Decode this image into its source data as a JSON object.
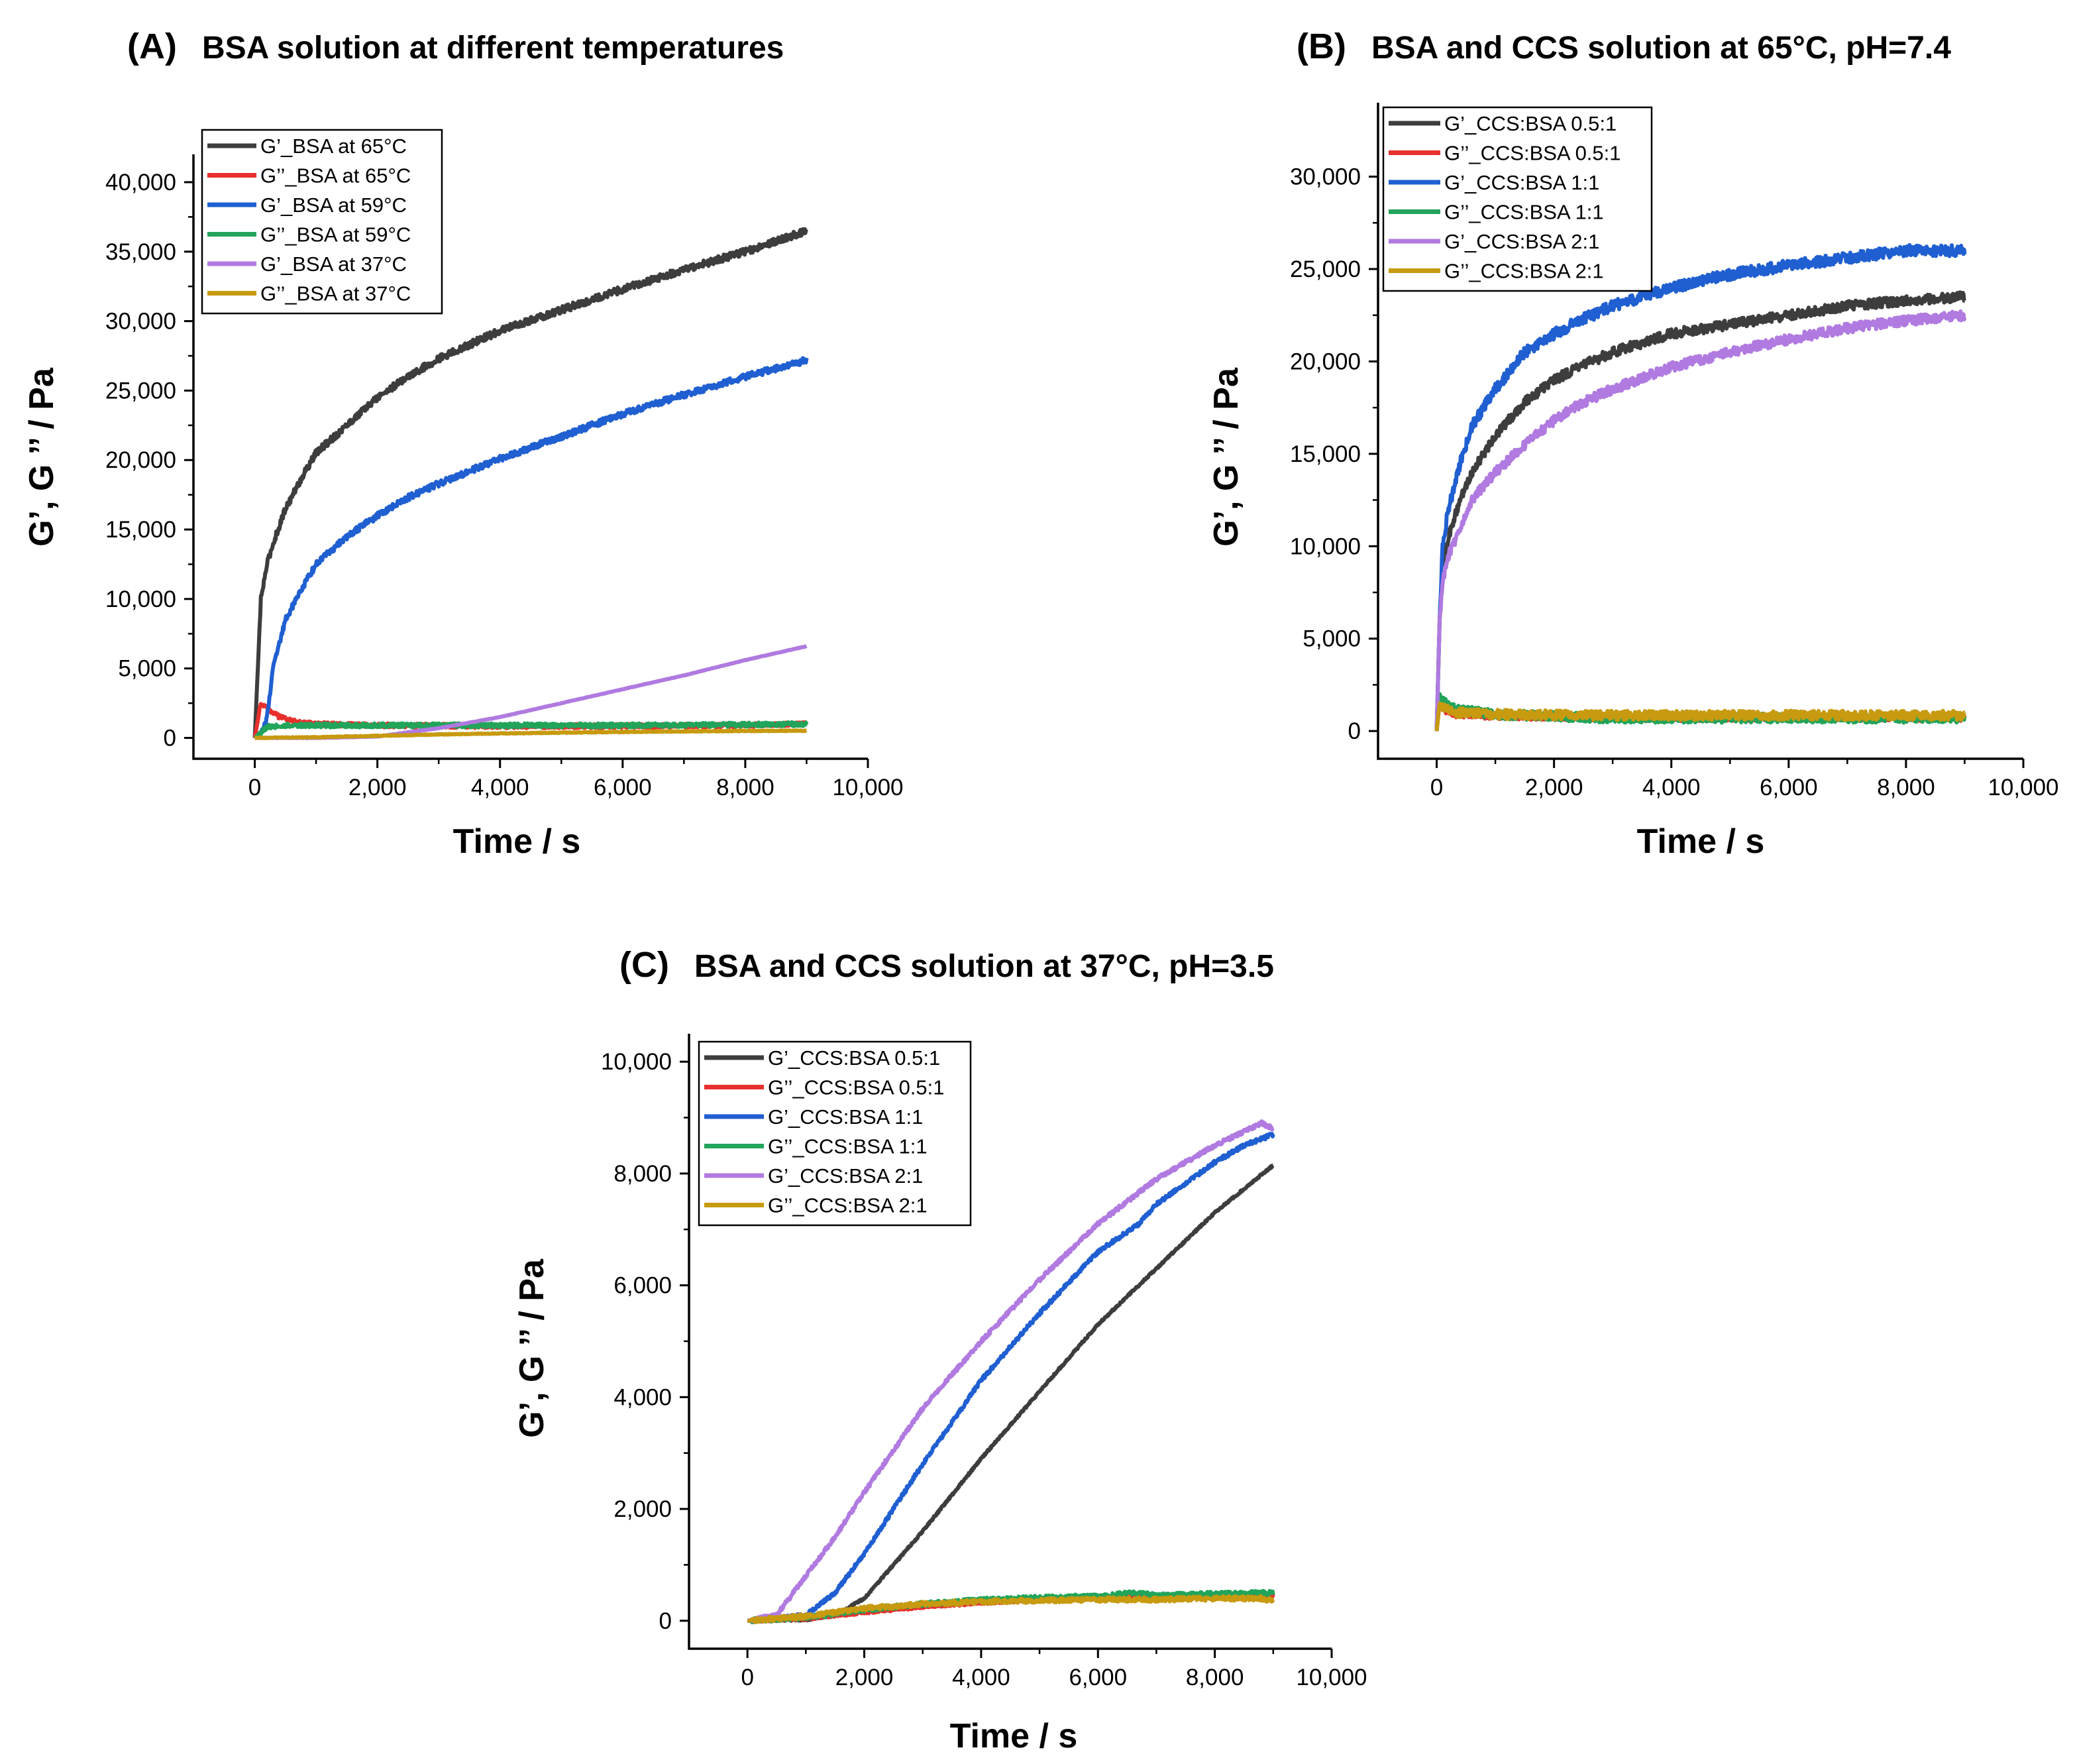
{
  "chart_data": [
    {
      "id": "A",
      "type": "line",
      "panel_label": "(A)",
      "title": "BSA solution at different temperatures",
      "xlabel": "Time / s",
      "ylabel": "G’, G ’’ / Pa",
      "xlim": [
        -1000,
        10000
      ],
      "ylim": [
        -1500,
        42000
      ],
      "xticks": [
        0,
        2000,
        4000,
        6000,
        8000,
        10000
      ],
      "xtick_labels": [
        "0",
        "2,000",
        "4,000",
        "6,000",
        "8,000",
        "10,000"
      ],
      "yticks": [
        0,
        5000,
        10000,
        15000,
        20000,
        25000,
        30000,
        35000,
        40000
      ],
      "ytick_labels": [
        "0",
        "5,000",
        "10,000",
        "15,000",
        "20,000",
        "25,000",
        "30,000",
        "35,000",
        "40,000"
      ],
      "legend_position": "top-left",
      "series": [
        {
          "name": "G’_BSA at 65°C",
          "color": "#3d3d3d",
          "noise": 250,
          "x": [
            0,
            50,
            100,
            200,
            300,
            500,
            800,
            1000,
            1500,
            2000,
            2500,
            3000,
            4000,
            5000,
            6000,
            7000,
            8000,
            9000
          ],
          "y": [
            0,
            5000,
            10000,
            12500,
            14000,
            16500,
            19000,
            20500,
            22500,
            24500,
            26000,
            27300,
            29300,
            30800,
            32300,
            33700,
            35000,
            36500
          ]
        },
        {
          "name": "G’’_BSA at 65°C",
          "color": "#e8302d",
          "noise": 150,
          "x": [
            0,
            100,
            200,
            400,
            700,
            1000,
            2000,
            4000,
            6000,
            8000,
            9000
          ],
          "y": [
            0,
            2500,
            2200,
            1500,
            1100,
            1000,
            900,
            850,
            850,
            900,
            1000
          ]
        },
        {
          "name": "G’_BSA at 59°C",
          "color": "#1f5fd1",
          "noise": 220,
          "x": [
            0,
            100,
            200,
            300,
            500,
            800,
            1000,
            1500,
            2000,
            2500,
            3000,
            4000,
            5000,
            6000,
            7000,
            8000,
            9000
          ],
          "y": [
            0,
            200,
            1500,
            5000,
            8500,
            11000,
            12500,
            14500,
            16000,
            17300,
            18300,
            20100,
            21700,
            23300,
            24700,
            26000,
            27200
          ]
        },
        {
          "name": "G’’_BSA at 59°C",
          "color": "#22a45a",
          "noise": 150,
          "x": [
            0,
            100,
            200,
            500,
            1000,
            2000,
            4000,
            6000,
            8000,
            9000
          ],
          "y": [
            0,
            400,
            800,
            900,
            900,
            900,
            900,
            900,
            950,
            1000
          ]
        },
        {
          "name": "G’_BSA at 37°C",
          "color": "#b07ae0",
          "noise": 15,
          "x": [
            0,
            1000,
            2000,
            2500,
            3000,
            4000,
            5000,
            6000,
            7000,
            8000,
            9000
          ],
          "y": [
            0,
            0,
            100,
            400,
            700,
            1500,
            2500,
            3500,
            4500,
            5600,
            6600
          ]
        },
        {
          "name": "G’’_BSA at 37°C",
          "color": "#c79a10",
          "noise": 25,
          "x": [
            0,
            1000,
            2000,
            3000,
            4000,
            5000,
            6000,
            7000,
            8000,
            9000
          ],
          "y": [
            0,
            50,
            150,
            250,
            320,
            380,
            430,
            470,
            500,
            520
          ]
        }
      ]
    },
    {
      "id": "B",
      "type": "line",
      "panel_label": "(B)",
      "title": "BSA and CCS solution at 65°C, pH=7.4",
      "xlabel": "Time / s",
      "ylabel": "G’, G ’’ / Pa",
      "xlim": [
        -1000,
        10000
      ],
      "ylim": [
        -1500,
        34000
      ],
      "xticks": [
        0,
        2000,
        4000,
        6000,
        8000,
        10000
      ],
      "xtick_labels": [
        "0",
        "2,000",
        "4,000",
        "6,000",
        "8,000",
        "10,000"
      ],
      "yticks": [
        0,
        5000,
        10000,
        15000,
        20000,
        25000,
        30000
      ],
      "ytick_labels": [
        "0",
        "5,000",
        "10,000",
        "15,000",
        "20,000",
        "25,000",
        "30,000"
      ],
      "legend_position": "top-left",
      "series": [
        {
          "name": "G’_CCS:BSA 0.5:1",
          "color": "#3d3d3d",
          "noise": 260,
          "x": [
            0,
            50,
            100,
            200,
            400,
            600,
            1000,
            1500,
            2000,
            2500,
            3000,
            4000,
            5000,
            6000,
            7000,
            8000,
            9000
          ],
          "y": [
            0,
            6000,
            9000,
            10500,
            12500,
            14000,
            16000,
            17800,
            19000,
            19800,
            20500,
            21500,
            22000,
            22500,
            23000,
            23300,
            23500
          ]
        },
        {
          "name": "G’’_CCS:BSA 0.5:1",
          "color": "#e8302d",
          "noise": 160,
          "x": [
            0,
            50,
            100,
            300,
            1000,
            3000,
            5000,
            7000,
            9000
          ],
          "y": [
            0,
            1500,
            1200,
            900,
            800,
            700,
            700,
            700,
            700
          ]
        },
        {
          "name": "G’_CCS:BSA 1:1",
          "color": "#1f5fd1",
          "noise": 300,
          "x": [
            0,
            50,
            100,
            200,
            400,
            600,
            1000,
            1500,
            2000,
            2500,
            3000,
            4000,
            5000,
            6000,
            7000,
            8000,
            9000
          ],
          "y": [
            0,
            6000,
            10000,
            12000,
            14500,
            16500,
            18500,
            20500,
            21500,
            22300,
            23000,
            24000,
            24700,
            25200,
            25600,
            26000,
            26000
          ]
        },
        {
          "name": "G’’_CCS:BSA 1:1",
          "color": "#22a45a",
          "noise": 250,
          "x": [
            0,
            50,
            100,
            300,
            1000,
            3000,
            5000,
            7000,
            9000
          ],
          "y": [
            0,
            2000,
            1600,
            1200,
            900,
            700,
            700,
            700,
            700
          ]
        },
        {
          "name": "G’_CCS:BSA 2:1",
          "color": "#b07ae0",
          "noise": 260,
          "x": [
            0,
            50,
            100,
            200,
            400,
            600,
            1000,
            1500,
            2000,
            2500,
            3000,
            4000,
            5000,
            6000,
            7000,
            8000,
            9000
          ],
          "y": [
            0,
            6000,
            8000,
            9500,
            11000,
            12500,
            14000,
            15500,
            16800,
            17800,
            18500,
            19700,
            20500,
            21200,
            21800,
            22200,
            22500
          ]
        },
        {
          "name": "G’’_CCS:BSA 2:1",
          "color": "#c79a10",
          "noise": 250,
          "x": [
            0,
            50,
            100,
            300,
            1000,
            3000,
            5000,
            7000,
            9000
          ],
          "y": [
            0,
            1500,
            1300,
            1000,
            900,
            850,
            850,
            850,
            850
          ]
        }
      ]
    },
    {
      "id": "C",
      "type": "line",
      "panel_label": "(C)",
      "title": "BSA and CCS solution at 37°C, pH=3.5",
      "xlabel": "Time / s",
      "ylabel": "G’, G ’’ / Pa",
      "xlim": [
        -1000,
        10000
      ],
      "ylim": [
        -500,
        10500
      ],
      "xticks": [
        0,
        2000,
        4000,
        6000,
        8000,
        10000
      ],
      "xtick_labels": [
        "0",
        "2,000",
        "4,000",
        "6,000",
        "8,000",
        "10,000"
      ],
      "yticks": [
        0,
        2000,
        4000,
        6000,
        8000,
        10000
      ],
      "ytick_labels": [
        "0",
        "2,000",
        "4,000",
        "6,000",
        "8,000",
        "10,000"
      ],
      "legend_position": "top-left",
      "series": [
        {
          "name": "G’_CCS:BSA 0.5:1",
          "color": "#3d3d3d",
          "noise": 18,
          "x": [
            0,
            1000,
            1500,
            2000,
            3000,
            4000,
            5000,
            6000,
            7000,
            8000,
            9000
          ],
          "y": [
            0,
            20,
            100,
            400,
            1600,
            2900,
            4100,
            5300,
            6300,
            7300,
            8150
          ]
        },
        {
          "name": "G’’_CCS:BSA 0.5:1",
          "color": "#e8302d",
          "noise": 25,
          "x": [
            0,
            1000,
            2000,
            3000,
            4000,
            5000,
            6000,
            7000,
            8000,
            9000
          ],
          "y": [
            0,
            40,
            150,
            250,
            320,
            370,
            400,
            420,
            450,
            450
          ]
        },
        {
          "name": "G’_CCS:BSA 1:1",
          "color": "#1f5fd1",
          "noise": 35,
          "x": [
            0,
            1000,
            1500,
            2000,
            3000,
            4000,
            5000,
            6000,
            6700,
            7000,
            8000,
            8500,
            9000
          ],
          "y": [
            0,
            100,
            500,
            1200,
            2800,
            4300,
            5500,
            6600,
            7100,
            7450,
            8200,
            8500,
            8700
          ]
        },
        {
          "name": "G’’_CCS:BSA 1:1",
          "color": "#22a45a",
          "noise": 40,
          "x": [
            0,
            1000,
            2000,
            3000,
            4000,
            5000,
            6000,
            6700,
            7000,
            8000,
            9000
          ],
          "y": [
            0,
            60,
            200,
            300,
            370,
            410,
            440,
            500,
            450,
            480,
            500
          ]
        },
        {
          "name": "G’_CCS:BSA 2:1",
          "color": "#b07ae0",
          "noise": 35,
          "x": [
            0,
            500,
            1000,
            1500,
            2000,
            3000,
            4000,
            5000,
            6000,
            7000,
            8000,
            8800,
            9000
          ],
          "y": [
            0,
            100,
            800,
            1500,
            2300,
            3800,
            5000,
            6100,
            7100,
            7900,
            8500,
            8900,
            8800
          ]
        },
        {
          "name": "G’’_CCS:BSA 2:1",
          "color": "#c79a10",
          "noise": 40,
          "x": [
            0,
            1000,
            2000,
            3000,
            4000,
            5000,
            6000,
            7000,
            8000,
            8800,
            9000
          ],
          "y": [
            0,
            80,
            220,
            300,
            340,
            360,
            380,
            380,
            400,
            400,
            350
          ]
        }
      ]
    }
  ]
}
